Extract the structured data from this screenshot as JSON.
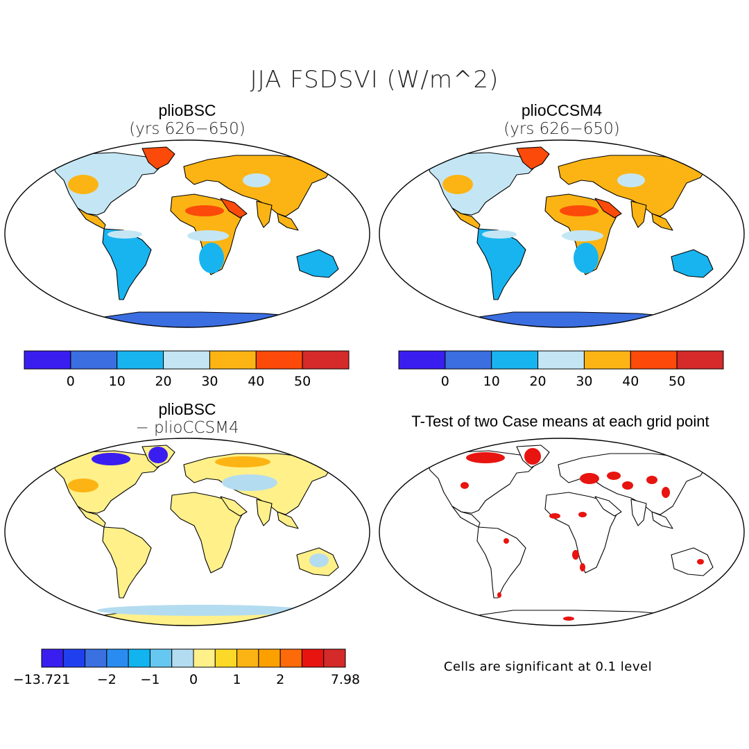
{
  "title": "JJA FSDSVI (W/m^2)",
  "panels": [
    {
      "title": "plioBSC",
      "subtitle": "(yrs 626−650)"
    },
    {
      "title": "plioCCSM4",
      "subtitle": "(yrs 626−650)"
    },
    {
      "title": "plioBSC",
      "subtitle": "− plioCCSM4"
    },
    {
      "title": "T-Test of two Case means at each grid point",
      "subtitle": ""
    }
  ],
  "colorbars": {
    "abs": {
      "colors": [
        "#3a1ef0",
        "#3b6ee0",
        "#18b4f0",
        "#c4e6f4",
        "#fbb414",
        "#fc4a0a",
        "#d42a2a"
      ],
      "labels": [
        "0",
        "10",
        "20",
        "30",
        "40",
        "50"
      ]
    },
    "diff": {
      "colors": [
        "#3a1ef0",
        "#2040f0",
        "#3a70e0",
        "#2a8cf0",
        "#12b4f0",
        "#66c8f0",
        "#b4dcf0",
        "#fff08a",
        "#fcd828",
        "#fcb414",
        "#fca000",
        "#fc6a0a",
        "#e81410",
        "#d42a2a"
      ],
      "labels": [
        "−13.721",
        "−2",
        "−1",
        "0",
        "1",
        "2",
        "7.98"
      ]
    }
  },
  "note": "Cells are significant at 0.1 level",
  "map_colors": {
    "land_abs_north": "#fbb414",
    "land_abs_mid": "#c4e6f4",
    "land_abs_south": "#18b4f0",
    "antarctica_abs": "#3b6ee0",
    "hot": "#fc4a0a",
    "diff_land": "#fff08a",
    "diff_blue": "#b4dcf0",
    "signif": "#e81410"
  }
}
